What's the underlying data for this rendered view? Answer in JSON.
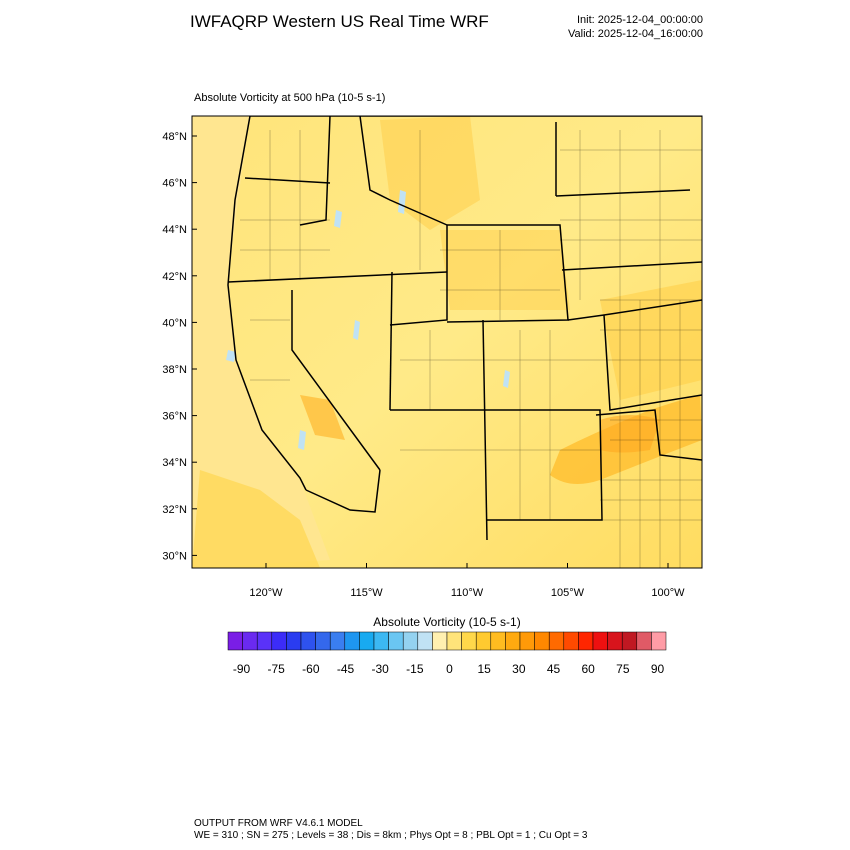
{
  "header": {
    "title": "IWFAQRP Western US Real Time WRF",
    "init": "Init: 2025-12-04_00:00:00",
    "valid": "Valid: 2025-12-04_16:00:00"
  },
  "map": {
    "title": "Absolute Vorticity at 500 hPa   (10-5 s-1)",
    "lat_labels": [
      "48°N",
      "46°N",
      "44°N",
      "42°N",
      "40°N",
      "38°N",
      "36°N",
      "34°N",
      "32°N",
      "30°N"
    ],
    "lon_labels": [
      "120°W",
      "115°W",
      "110°W",
      "105°W",
      "100°W"
    ]
  },
  "colorbar": {
    "title": "Absolute Vorticity  (10-5 s-1)",
    "ticks": [
      -90,
      -75,
      -60,
      -45,
      -30,
      -15,
      0,
      15,
      30,
      45,
      60,
      75,
      90
    ],
    "colors": [
      "#7a1ee6",
      "#6a2af0",
      "#5a32f8",
      "#3c2cf8",
      "#2a3cf0",
      "#2e52ee",
      "#3468ec",
      "#3a7ef0",
      "#1e96f0",
      "#18aaf0",
      "#3cb8f2",
      "#6ac6f2",
      "#94d2f0",
      "#c0e2f4",
      "#fff0b0",
      "#ffe47a",
      "#ffd84a",
      "#ffca30",
      "#ffbc20",
      "#ffaa10",
      "#ff9a08",
      "#ff8800",
      "#ff6a00",
      "#ff4a00",
      "#ff2600",
      "#ee1010",
      "#d8141c",
      "#c01822",
      "#e05a66",
      "#ff9ca6"
    ]
  },
  "footer": {
    "line1": "OUTPUT FROM WRF V4.6.1 MODEL",
    "line2": "WE = 310 ; SN = 275 ; Levels = 38 ; Dis = 8km ; Phys Opt = 8 ; PBL Opt = 1 ; Cu Opt = 3"
  }
}
